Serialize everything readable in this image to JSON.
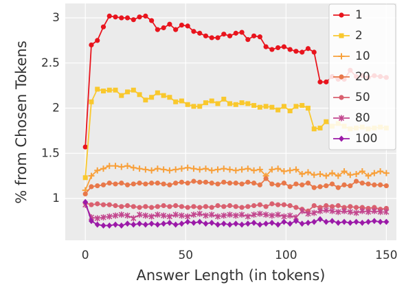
{
  "chart_data": {
    "type": "line",
    "xlabel": "Answer Length (in tokens)",
    "ylabel": "% from Chosen Tokens",
    "xlim": [
      -10,
      155
    ],
    "ylim": [
      0.536,
      3.16
    ],
    "xticks": [
      0,
      50,
      100,
      150
    ],
    "yticks": [
      1,
      1.5,
      2,
      2.5,
      3
    ],
    "grid": true,
    "legend": "upper right",
    "x": [
      0,
      3,
      6,
      9,
      12,
      15,
      18,
      21,
      24,
      27,
      30,
      33,
      36,
      39,
      42,
      45,
      48,
      51,
      54,
      57,
      60,
      63,
      66,
      69,
      72,
      75,
      78,
      81,
      84,
      87,
      90,
      93,
      96,
      99,
      102,
      105,
      108,
      111,
      114,
      117,
      120,
      123,
      126,
      129,
      132,
      135,
      138,
      141,
      144,
      147,
      150
    ],
    "series": [
      {
        "name": "1",
        "color": "#e8141d",
        "marker": "circle",
        "values": [
          1.57,
          2.7,
          2.75,
          2.9,
          3.02,
          3.01,
          3.0,
          3.0,
          2.98,
          3.01,
          3.02,
          2.97,
          2.87,
          2.89,
          2.93,
          2.87,
          2.92,
          2.91,
          2.85,
          2.83,
          2.8,
          2.78,
          2.78,
          2.82,
          2.8,
          2.83,
          2.84,
          2.76,
          2.8,
          2.79,
          2.68,
          2.65,
          2.67,
          2.68,
          2.65,
          2.63,
          2.62,
          2.66,
          2.62,
          2.29,
          2.29,
          2.35,
          2.32,
          2.32,
          2.42,
          2.35,
          2.36,
          2.34,
          2.36,
          2.35,
          2.34
        ]
      },
      {
        "name": "2",
        "color": "#f9c82d",
        "marker": "square",
        "values": [
          1.23,
          2.07,
          2.21,
          2.19,
          2.2,
          2.2,
          2.14,
          2.18,
          2.2,
          2.15,
          2.09,
          2.12,
          2.17,
          2.14,
          2.12,
          2.07,
          2.08,
          2.04,
          2.02,
          2.02,
          2.06,
          2.08,
          2.05,
          2.1,
          2.05,
          2.04,
          2.06,
          2.05,
          2.03,
          2.01,
          2.02,
          2.01,
          1.98,
          2.02,
          1.97,
          2.02,
          2.03,
          2.0,
          1.77,
          1.78,
          1.85,
          1.8,
          1.83,
          1.8,
          1.77,
          1.78,
          1.79,
          1.77,
          1.78,
          1.79,
          1.78
        ]
      },
      {
        "name": "10",
        "color": "#f8a03a",
        "marker": "plus",
        "values": [
          1.09,
          1.25,
          1.31,
          1.33,
          1.36,
          1.36,
          1.35,
          1.36,
          1.34,
          1.33,
          1.32,
          1.31,
          1.33,
          1.32,
          1.31,
          1.32,
          1.33,
          1.34,
          1.33,
          1.32,
          1.33,
          1.31,
          1.32,
          1.33,
          1.32,
          1.31,
          1.32,
          1.33,
          1.31,
          1.32,
          1.25,
          1.32,
          1.33,
          1.3,
          1.31,
          1.32,
          1.27,
          1.29,
          1.26,
          1.27,
          1.25,
          1.28,
          1.25,
          1.3,
          1.26,
          1.27,
          1.3,
          1.25,
          1.28,
          1.3,
          1.28
        ]
      },
      {
        "name": "20",
        "color": "#e8784a",
        "marker": "circle",
        "values": [
          1.05,
          1.13,
          1.14,
          1.15,
          1.17,
          1.16,
          1.17,
          1.15,
          1.16,
          1.17,
          1.16,
          1.17,
          1.17,
          1.16,
          1.15,
          1.17,
          1.18,
          1.17,
          1.19,
          1.18,
          1.18,
          1.17,
          1.16,
          1.18,
          1.17,
          1.17,
          1.16,
          1.18,
          1.17,
          1.15,
          1.22,
          1.16,
          1.15,
          1.17,
          1.13,
          1.16,
          1.15,
          1.17,
          1.12,
          1.13,
          1.14,
          1.16,
          1.12,
          1.15,
          1.14,
          1.19,
          1.17,
          1.16,
          1.15,
          1.15,
          1.14
        ]
      },
      {
        "name": "50",
        "color": "#d9606f",
        "marker": "circle",
        "values": [
          0.95,
          0.93,
          0.94,
          0.93,
          0.93,
          0.92,
          0.91,
          0.92,
          0.91,
          0.9,
          0.91,
          0.9,
          0.91,
          0.92,
          0.91,
          0.92,
          0.91,
          0.9,
          0.91,
          0.9,
          0.91,
          0.9,
          0.92,
          0.91,
          0.92,
          0.91,
          0.9,
          0.91,
          0.92,
          0.93,
          0.91,
          0.94,
          0.93,
          0.93,
          0.92,
          0.9,
          0.88,
          0.86,
          0.92,
          0.9,
          0.92,
          0.91,
          0.92,
          0.9,
          0.91,
          0.9,
          0.9,
          0.89,
          0.9,
          0.88,
          0.89
        ]
      },
      {
        "name": "80",
        "color": "#c2468e",
        "marker": "star",
        "values": [
          0.93,
          0.79,
          0.78,
          0.79,
          0.8,
          0.81,
          0.82,
          0.81,
          0.78,
          0.82,
          0.81,
          0.8,
          0.82,
          0.81,
          0.8,
          0.82,
          0.81,
          0.8,
          0.82,
          0.83,
          0.81,
          0.82,
          0.8,
          0.81,
          0.82,
          0.81,
          0.82,
          0.8,
          0.82,
          0.83,
          0.82,
          0.81,
          0.82,
          0.8,
          0.81,
          0.79,
          0.86,
          0.83,
          0.84,
          0.86,
          0.87,
          0.86,
          0.85,
          0.86,
          0.85,
          0.84,
          0.86,
          0.85,
          0.86,
          0.85,
          0.85
        ]
      },
      {
        "name": "100",
        "color": "#9b1aa8",
        "marker": "diamond",
        "values": [
          0.96,
          0.75,
          0.71,
          0.7,
          0.7,
          0.71,
          0.7,
          0.72,
          0.71,
          0.72,
          0.71,
          0.72,
          0.71,
          0.72,
          0.73,
          0.71,
          0.72,
          0.74,
          0.73,
          0.74,
          0.72,
          0.73,
          0.71,
          0.72,
          0.71,
          0.72,
          0.71,
          0.72,
          0.73,
          0.71,
          0.72,
          0.73,
          0.71,
          0.74,
          0.72,
          0.75,
          0.72,
          0.73,
          0.74,
          0.77,
          0.74,
          0.75,
          0.73,
          0.74,
          0.73,
          0.74,
          0.73,
          0.74,
          0.75,
          0.74,
          0.74
        ]
      }
    ]
  }
}
